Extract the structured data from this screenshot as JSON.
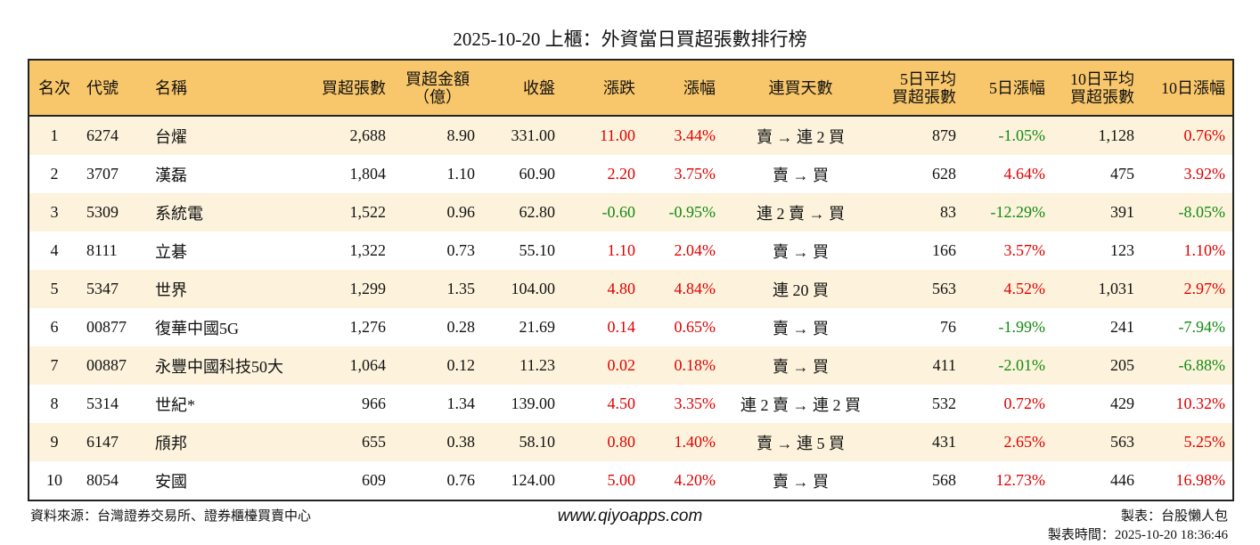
{
  "title": "2025-10-20 上櫃：外資當日買超張數排行榜",
  "table": {
    "header": [
      "名次",
      "代號",
      "名稱",
      "買超張數",
      "買超金額\n（億）",
      "收盤",
      "漲跌",
      "漲幅",
      "連買天數",
      "5日平均\n買超張數",
      "5日漲幅",
      "10日平均\n買超張數",
      "10日漲幅"
    ],
    "rows": [
      [
        "1",
        "6274",
        "台燿",
        "2,688",
        "8.90",
        "331.00",
        "11.00",
        "3.44%",
        "賣 → 連 2 買",
        "879",
        "-1.05%",
        "1,128",
        "0.76%"
      ],
      [
        "2",
        "3707",
        "漢磊",
        "1,804",
        "1.10",
        "60.90",
        "2.20",
        "3.75%",
        "賣 → 買",
        "628",
        "4.64%",
        "475",
        "3.92%"
      ],
      [
        "3",
        "5309",
        "系統電",
        "1,522",
        "0.96",
        "62.80",
        "-0.60",
        "-0.95%",
        "連 2 賣 → 買",
        "83",
        "-12.29%",
        "391",
        "-8.05%"
      ],
      [
        "4",
        "8111",
        "立碁",
        "1,322",
        "0.73",
        "55.10",
        "1.10",
        "2.04%",
        "賣 → 買",
        "166",
        "3.57%",
        "123",
        "1.10%"
      ],
      [
        "5",
        "5347",
        "世界",
        "1,299",
        "1.35",
        "104.00",
        "4.80",
        "4.84%",
        "連 20 買",
        "563",
        "4.52%",
        "1,031",
        "2.97%"
      ],
      [
        "6",
        "00877",
        "復華中國5G",
        "1,276",
        "0.28",
        "21.69",
        "0.14",
        "0.65%",
        "賣 → 買",
        "76",
        "-1.99%",
        "241",
        "-7.94%"
      ],
      [
        "7",
        "00887",
        "永豐中國科技50大",
        "1,064",
        "0.12",
        "11.23",
        "0.02",
        "0.18%",
        "賣 → 買",
        "411",
        "-2.01%",
        "205",
        "-6.88%"
      ],
      [
        "8",
        "5314",
        "世紀*",
        "966",
        "1.34",
        "139.00",
        "4.50",
        "3.35%",
        "連 2 賣 → 連 2 買",
        "532",
        "0.72%",
        "429",
        "10.32%"
      ],
      [
        "9",
        "6147",
        "頎邦",
        "655",
        "0.38",
        "58.10",
        "0.80",
        "1.40%",
        "賣 → 連 5 買",
        "431",
        "2.65%",
        "563",
        "5.25%"
      ],
      [
        "10",
        "8054",
        "安國",
        "609",
        "0.76",
        "124.00",
        "5.00",
        "4.20%",
        "賣 → 買",
        "568",
        "12.73%",
        "446",
        "16.98%"
      ]
    ]
  },
  "footer": {
    "source": "資料來源：台灣證券交易所、證券櫃檯買賣中心",
    "website": "www.qiyoapps.com",
    "author": "製表：台股懶人包",
    "time": "製表時間：2025-10-20 18:36:46"
  }
}
